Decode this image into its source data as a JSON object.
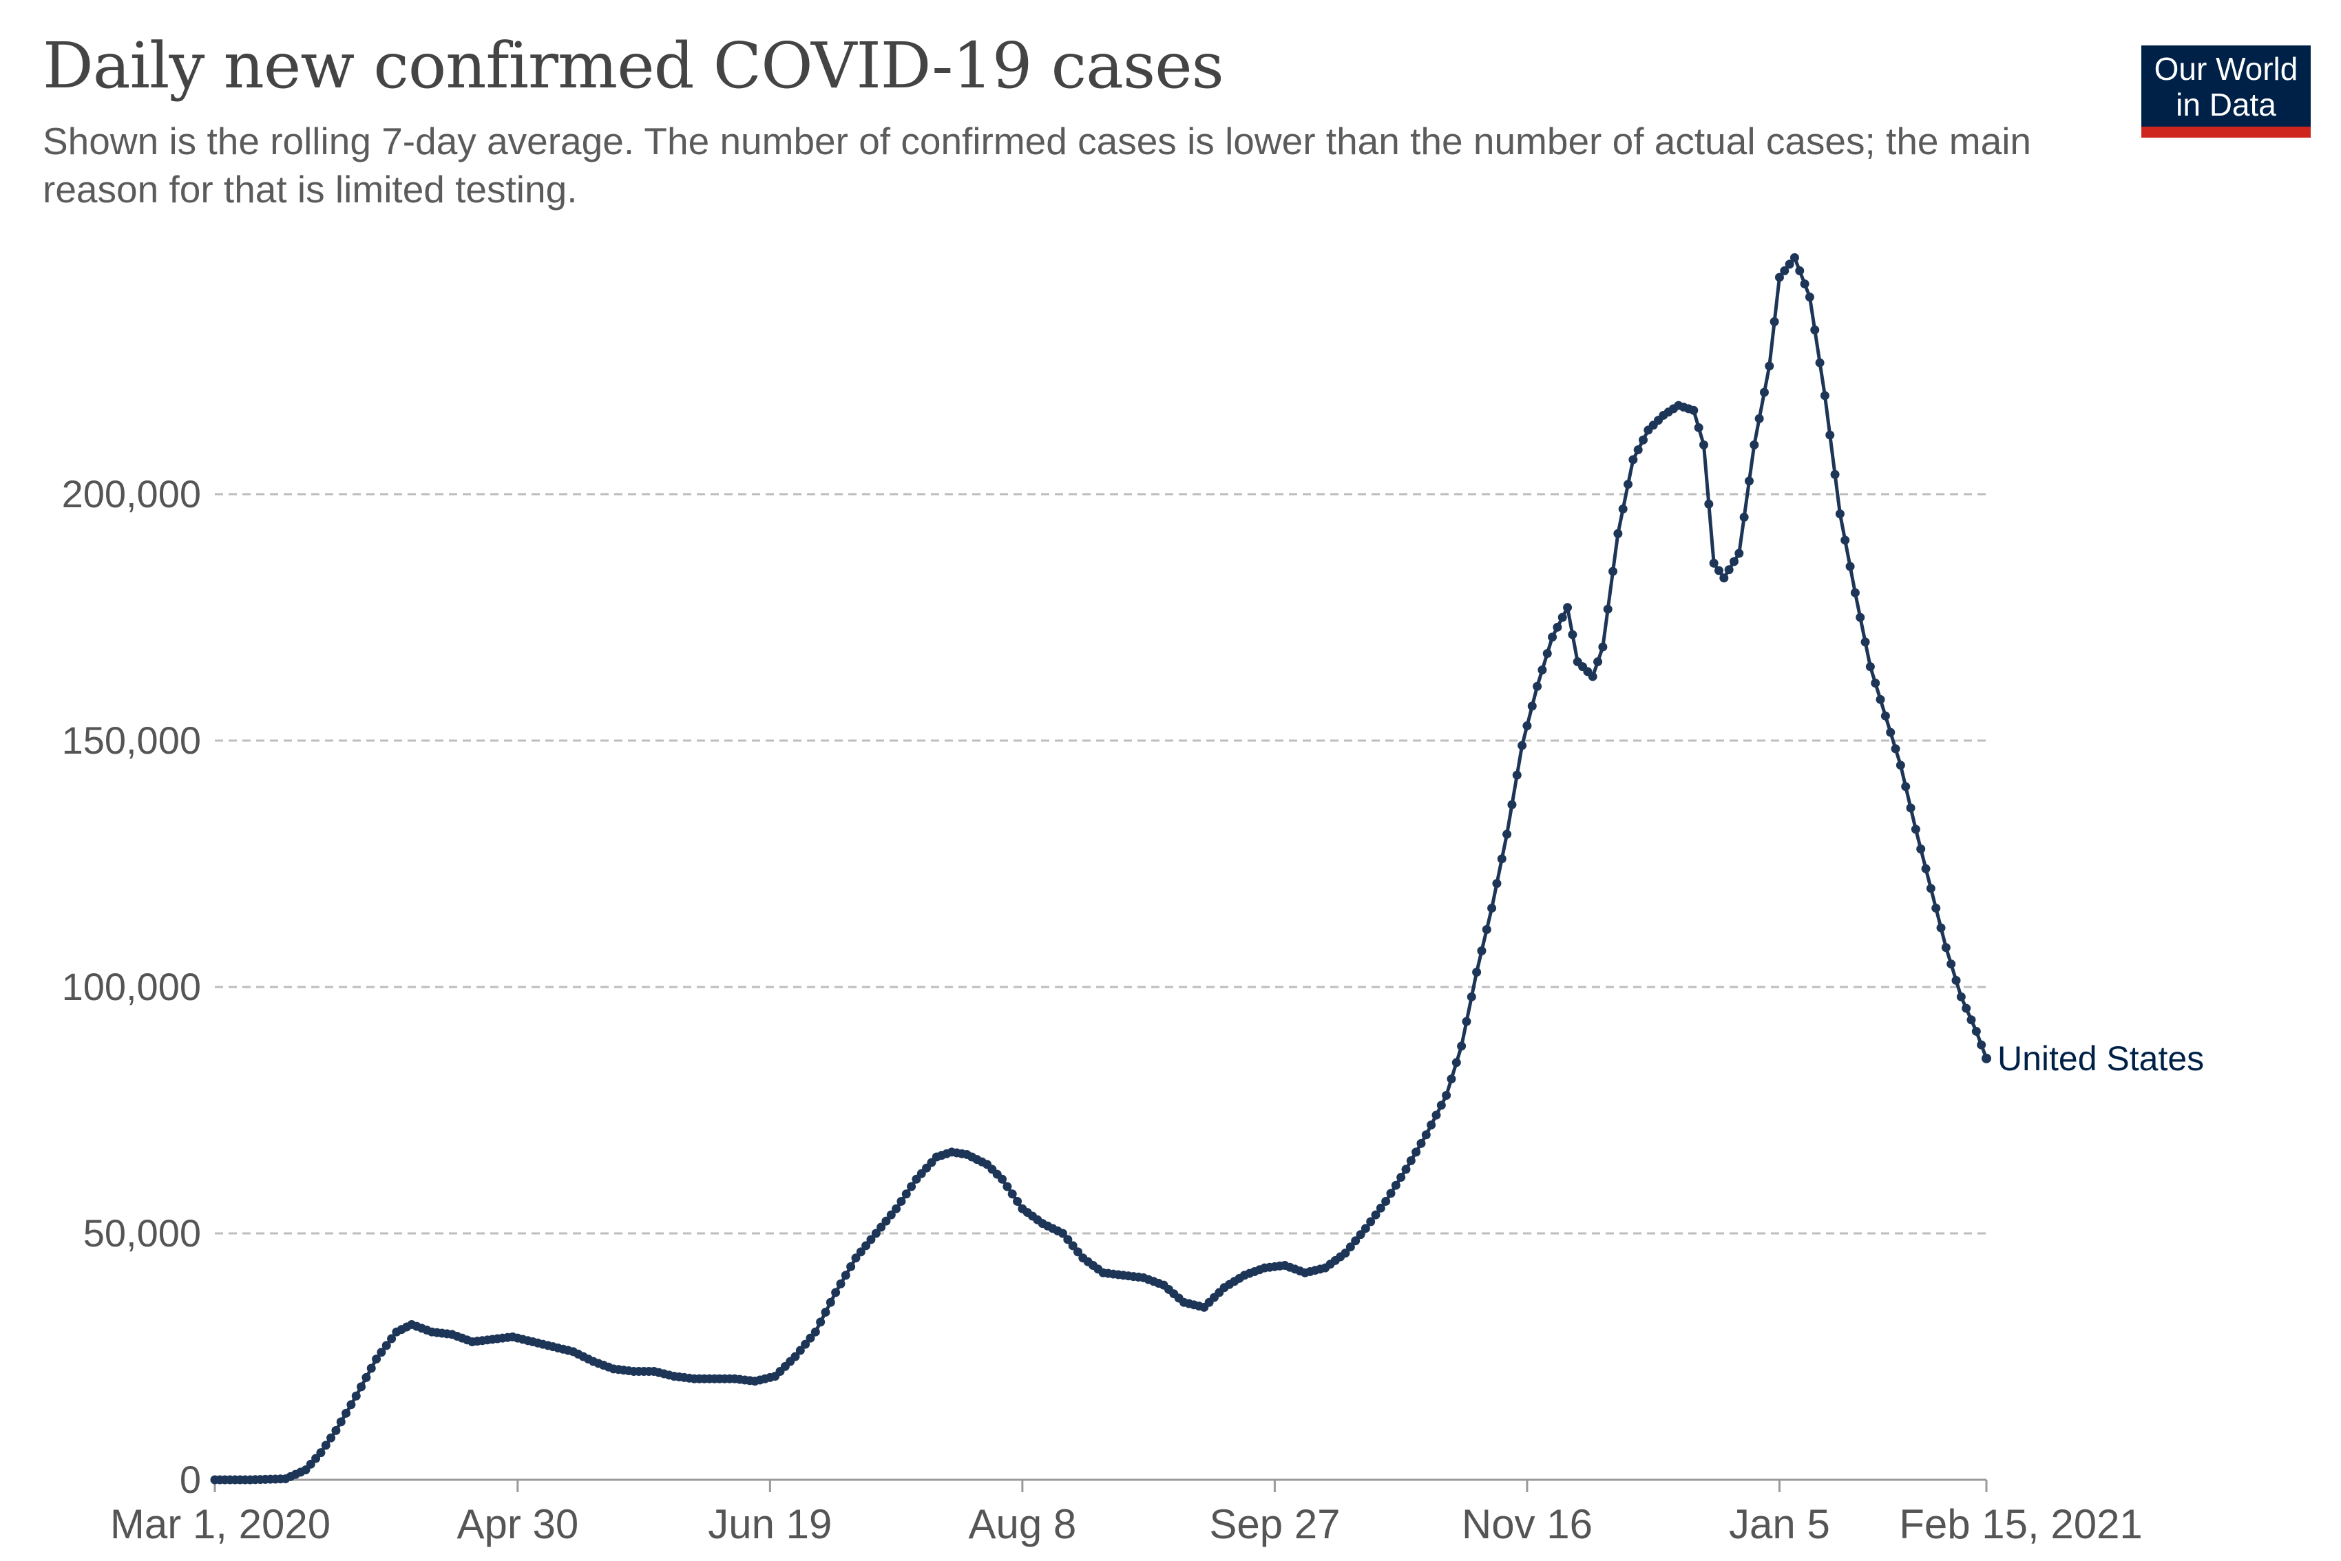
{
  "header": {
    "title": "Daily new confirmed COVID-19 cases",
    "subtitle": "Shown is the rolling 7-day average. The number of confirmed cases is lower than the number of actual cases; the main reason for that is limited testing."
  },
  "logo": {
    "line1": "Our World",
    "line2": "in Data",
    "colors": {
      "background": "#002147",
      "accent": "#ce261e"
    }
  },
  "chart_data": {
    "type": "line",
    "title": "Daily new confirmed COVID-19 cases",
    "subtitle": "Shown is the rolling 7-day average. The number of confirmed cases is lower than the number of actual cases; the main reason for that is limited testing.",
    "xlabel": "",
    "ylabel": "",
    "ylim": [
      0,
      250000
    ],
    "xlim": [
      "2020-03-01",
      "2021-02-15"
    ],
    "grid": {
      "horizontal": true,
      "style": "dashed"
    },
    "y_ticks": [
      {
        "value": 0,
        "label": "0"
      },
      {
        "value": 50000,
        "label": "50,000"
      },
      {
        "value": 100000,
        "label": "100,000"
      },
      {
        "value": 150000,
        "label": "150,000"
      },
      {
        "value": 200000,
        "label": "200,000"
      }
    ],
    "x_ticks": [
      {
        "date": "2020-03-01",
        "label": "Mar 1, 2020"
      },
      {
        "date": "2020-04-30",
        "label": "Apr 30"
      },
      {
        "date": "2020-06-19",
        "label": "Jun 19"
      },
      {
        "date": "2020-08-08",
        "label": "Aug 8"
      },
      {
        "date": "2020-09-27",
        "label": "Sep 27"
      },
      {
        "date": "2020-11-16",
        "label": "Nov 16"
      },
      {
        "date": "2021-01-05",
        "label": "Jan 5"
      },
      {
        "date": "2021-02-15",
        "label": "Feb 15, 2021"
      }
    ],
    "series": [
      {
        "name": "United States",
        "color": "#1d3557",
        "points": [
          [
            "2020-03-01",
            0
          ],
          [
            "2020-03-08",
            0
          ],
          [
            "2020-03-15",
            200
          ],
          [
            "2020-03-19",
            2000
          ],
          [
            "2020-03-22",
            5500
          ],
          [
            "2020-03-25",
            10000
          ],
          [
            "2020-03-29",
            17000
          ],
          [
            "2020-04-02",
            24500
          ],
          [
            "2020-04-06",
            30000
          ],
          [
            "2020-04-09",
            31500
          ],
          [
            "2020-04-13",
            30000
          ],
          [
            "2020-04-17",
            29500
          ],
          [
            "2020-04-21",
            28000
          ],
          [
            "2020-04-25",
            28500
          ],
          [
            "2020-04-29",
            29000
          ],
          [
            "2020-05-03",
            28000
          ],
          [
            "2020-05-07",
            27000
          ],
          [
            "2020-05-11",
            26000
          ],
          [
            "2020-05-15",
            24000
          ],
          [
            "2020-05-19",
            22500
          ],
          [
            "2020-05-23",
            22000
          ],
          [
            "2020-05-27",
            22000
          ],
          [
            "2020-05-31",
            21000
          ],
          [
            "2020-06-04",
            20500
          ],
          [
            "2020-06-08",
            20500
          ],
          [
            "2020-06-12",
            20500
          ],
          [
            "2020-06-16",
            20000
          ],
          [
            "2020-06-20",
            21000
          ],
          [
            "2020-06-24",
            25000
          ],
          [
            "2020-06-28",
            30000
          ],
          [
            "2020-07-02",
            38000
          ],
          [
            "2020-07-06",
            45000
          ],
          [
            "2020-07-10",
            50000
          ],
          [
            "2020-07-14",
            55000
          ],
          [
            "2020-07-18",
            61000
          ],
          [
            "2020-07-22",
            65500
          ],
          [
            "2020-07-25",
            66500
          ],
          [
            "2020-07-28",
            66000
          ],
          [
            "2020-08-01",
            64000
          ],
          [
            "2020-08-04",
            61000
          ],
          [
            "2020-08-08",
            55000
          ],
          [
            "2020-08-12",
            52000
          ],
          [
            "2020-08-16",
            50000
          ],
          [
            "2020-08-20",
            45000
          ],
          [
            "2020-08-24",
            42000
          ],
          [
            "2020-08-28",
            41500
          ],
          [
            "2020-09-01",
            41000
          ],
          [
            "2020-09-05",
            39500
          ],
          [
            "2020-09-09",
            36000
          ],
          [
            "2020-09-13",
            35000
          ],
          [
            "2020-09-17",
            39000
          ],
          [
            "2020-09-21",
            41500
          ],
          [
            "2020-09-25",
            43000
          ],
          [
            "2020-09-29",
            43500
          ],
          [
            "2020-10-03",
            42000
          ],
          [
            "2020-10-07",
            43000
          ],
          [
            "2020-10-11",
            46000
          ],
          [
            "2020-10-15",
            51000
          ],
          [
            "2020-10-19",
            56500
          ],
          [
            "2020-10-23",
            63000
          ],
          [
            "2020-10-27",
            70000
          ],
          [
            "2020-10-31",
            78000
          ],
          [
            "2020-11-03",
            88000
          ],
          [
            "2020-11-06",
            103000
          ],
          [
            "2020-11-09",
            116000
          ],
          [
            "2020-11-12",
            131000
          ],
          [
            "2020-11-15",
            149000
          ],
          [
            "2020-11-18",
            161000
          ],
          [
            "2020-11-21",
            171000
          ],
          [
            "2020-11-24",
            177000
          ],
          [
            "2020-11-26",
            166000
          ],
          [
            "2020-11-29",
            163000
          ],
          [
            "2020-12-01",
            169000
          ],
          [
            "2020-12-04",
            192000
          ],
          [
            "2020-12-07",
            207000
          ],
          [
            "2020-12-10",
            213000
          ],
          [
            "2020-12-13",
            216000
          ],
          [
            "2020-12-16",
            218000
          ],
          [
            "2020-12-19",
            217000
          ],
          [
            "2020-12-21",
            210000
          ],
          [
            "2020-12-23",
            186000
          ],
          [
            "2020-12-25",
            183000
          ],
          [
            "2020-12-28",
            188000
          ],
          [
            "2020-12-31",
            210000
          ],
          [
            "2021-01-03",
            226000
          ],
          [
            "2021-01-05",
            244000
          ],
          [
            "2021-01-08",
            248000
          ],
          [
            "2021-01-11",
            240000
          ],
          [
            "2021-01-14",
            220000
          ],
          [
            "2021-01-17",
            196000
          ],
          [
            "2021-01-20",
            180000
          ],
          [
            "2021-01-23",
            165000
          ],
          [
            "2021-01-26",
            155000
          ],
          [
            "2021-01-29",
            145000
          ],
          [
            "2021-02-01",
            132000
          ],
          [
            "2021-02-04",
            120000
          ],
          [
            "2021-02-07",
            108000
          ],
          [
            "2021-02-10",
            98000
          ],
          [
            "2021-02-13",
            91000
          ],
          [
            "2021-02-15",
            85500
          ]
        ]
      }
    ],
    "series_label_position": "right-of-last-point"
  }
}
